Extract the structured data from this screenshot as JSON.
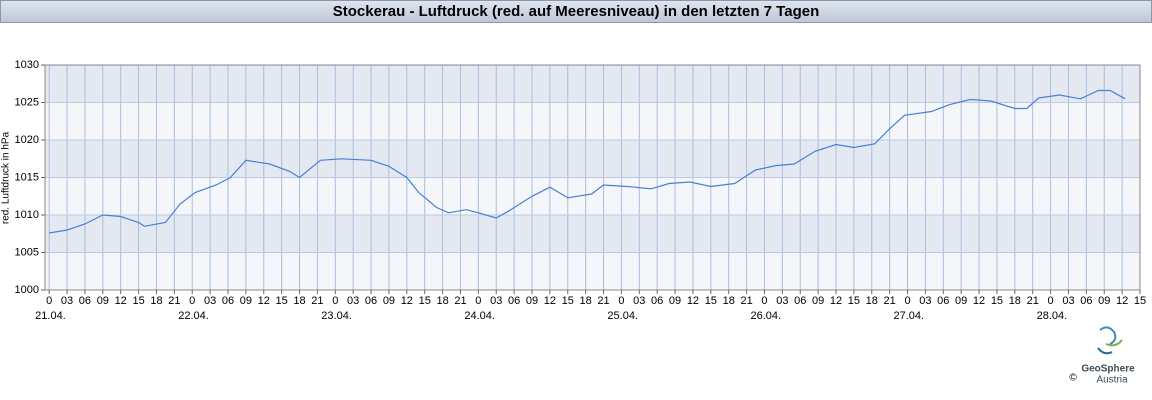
{
  "chart_data": {
    "type": "line",
    "title": "Stockerau - Luftdruck (red. auf Meeresniveau) in den letzten 7 Tagen",
    "y_label": "red. Luftdruck in hPa",
    "x": [
      0,
      3,
      6,
      9,
      12,
      15,
      16,
      19.5,
      22,
      24.5,
      28,
      30.4,
      33,
      37,
      40.4,
      42,
      45.5,
      49,
      54,
      57,
      60,
      62,
      65,
      67,
      70,
      72,
      75,
      77,
      81,
      84,
      87,
      91,
      93,
      97,
      101,
      104,
      107.5,
      111,
      115,
      118.5,
      122,
      125,
      128.5,
      132,
      135,
      138.5,
      141,
      143.5,
      148,
      151,
      154.5,
      158,
      162,
      164,
      166,
      169.5,
      173,
      176,
      178,
      180.5
    ],
    "series": [
      {
        "name": "red. Luftdruck",
        "color": "#4a7fd4",
        "values": [
          1007.6,
          1008,
          1008.8,
          1010,
          1009.8,
          1009,
          1008.5,
          1009,
          1011.5,
          1013,
          1014,
          1015,
          1017.3,
          1016.8,
          1015.8,
          1015,
          1017.3,
          1017.5,
          1017.3,
          1016.5,
          1015,
          1013,
          1011,
          1010.3,
          1010.7,
          1010.3,
          1009.6,
          1010.5,
          1012.5,
          1013.7,
          1012.3,
          1012.8,
          1014,
          1013.8,
          1013.5,
          1014.2,
          1014.4,
          1013.8,
          1014.2,
          1016,
          1016.6,
          1016.8,
          1018.5,
          1019.4,
          1019,
          1019.5,
          1021.5,
          1023.3,
          1023.8,
          1024.7,
          1025.4,
          1025.2,
          1024.2,
          1024.2,
          1025.6,
          1026,
          1025.5,
          1026.6,
          1026.6,
          1025.5
        ]
      }
    ],
    "xlim": [
      -0.7,
      183
    ],
    "ylim": [
      1000,
      1030
    ],
    "yticks": [
      1000,
      1005,
      1010,
      1015,
      1020,
      1025,
      1030
    ],
    "xticks": [
      0,
      {
        "value": 3,
        "label": "03"
      },
      {
        "value": 6,
        "label": "06"
      },
      {
        "value": 9,
        "label": "09"
      },
      {
        "value": 12,
        "label": "12"
      },
      {
        "value": 15,
        "label": "15"
      },
      {
        "value": 18,
        "label": "18"
      },
      {
        "value": 21,
        "label": "21"
      },
      {
        "value": 24,
        "label": "0"
      },
      {
        "value": 27,
        "label": "03"
      },
      {
        "value": 30,
        "label": "06"
      },
      {
        "value": 33,
        "label": "09"
      },
      {
        "value": 36,
        "label": "12"
      },
      {
        "value": 39,
        "label": "15"
      },
      {
        "value": 42,
        "label": "18"
      },
      {
        "value": 45,
        "label": "21"
      },
      {
        "value": 48,
        "label": "0"
      },
      {
        "value": 51,
        "label": "03"
      },
      {
        "value": 54,
        "label": "06"
      },
      {
        "value": 57,
        "label": "09"
      },
      {
        "value": 60,
        "label": "12"
      },
      {
        "value": 63,
        "label": "15"
      },
      {
        "value": 66,
        "label": "18"
      },
      {
        "value": 69,
        "label": "21"
      },
      {
        "value": 72,
        "label": "0"
      },
      {
        "value": 75,
        "label": "03"
      },
      {
        "value": 78,
        "label": "06"
      },
      {
        "value": 81,
        "label": "09"
      },
      {
        "value": 84,
        "label": "12"
      },
      {
        "value": 87,
        "label": "15"
      },
      {
        "value": 90,
        "label": "18"
      },
      {
        "value": 93,
        "label": "21"
      },
      {
        "value": 96,
        "label": "0"
      },
      {
        "value": 99,
        "label": "03"
      },
      {
        "value": 102,
        "label": "06"
      },
      {
        "value": 105,
        "label": "09"
      },
      {
        "value": 108,
        "label": "12"
      },
      {
        "value": 111,
        "label": "15"
      },
      {
        "value": 114,
        "label": "18"
      },
      {
        "value": 117,
        "label": "21"
      },
      {
        "value": 120,
        "label": "0"
      },
      {
        "value": 123,
        "label": "03"
      },
      {
        "value": 126,
        "label": "06"
      },
      {
        "value": 129,
        "label": "09"
      },
      {
        "value": 132,
        "label": "12"
      },
      {
        "value": 135,
        "label": "15"
      },
      {
        "value": 138,
        "label": "18"
      },
      {
        "value": 141,
        "label": "21"
      },
      {
        "value": 144,
        "label": "0"
      },
      {
        "value": 147,
        "label": "03"
      },
      {
        "value": 150,
        "label": "06"
      },
      {
        "value": 153,
        "label": "09"
      },
      {
        "value": 156,
        "label": "12"
      },
      {
        "value": 159,
        "label": "15"
      },
      {
        "value": 162,
        "label": "18"
      },
      {
        "value": 165,
        "label": "21"
      },
      {
        "value": 168,
        "label": "0"
      },
      {
        "value": 171,
        "label": "03"
      },
      {
        "value": 174,
        "label": "06"
      },
      {
        "value": 177,
        "label": "09"
      },
      {
        "value": 180,
        "label": "12"
      },
      {
        "value": 183,
        "label": "15"
      }
    ],
    "date_ticks": [
      {
        "value": 0,
        "label": "21.04."
      },
      {
        "value": 24,
        "label": "22.04."
      },
      {
        "value": 48,
        "label": "23.04."
      },
      {
        "value": 72,
        "label": "24.04."
      },
      {
        "value": 96,
        "label": "25.04."
      },
      {
        "value": 120,
        "label": "26.04."
      },
      {
        "value": 144,
        "label": "27.04."
      },
      {
        "value": 168,
        "label": "28.04."
      }
    ],
    "grid": true,
    "logo": {
      "name": "GeoSphere",
      "country": "Austria",
      "copyright": "©"
    }
  }
}
